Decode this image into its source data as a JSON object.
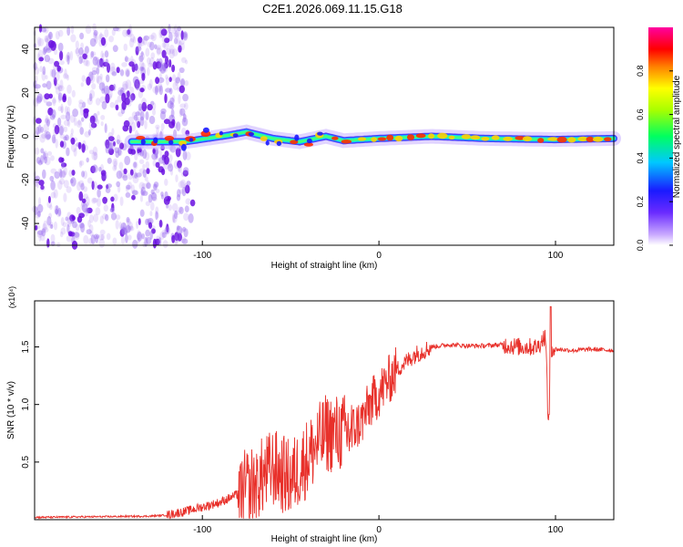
{
  "title": "C2E1.2026.069.11.15.G18",
  "colors": {
    "snr_line": "#e8302a",
    "spec_track_core": "#ff2a00",
    "spec_track_outer": "#2a2aff",
    "noise": "#8a3cff"
  },
  "chart_data": [
    {
      "type": "heatmap",
      "title": "",
      "xlabel": "Height of straight line (km)",
      "ylabel": "Frequency (Hz)",
      "xlim": [
        -195,
        133
      ],
      "ylim": [
        -50,
        50
      ],
      "xticks": [
        -100,
        0,
        100
      ],
      "yticks": [
        -40,
        -20,
        0,
        20,
        40
      ],
      "colorbar": {
        "label": "Normalized spectral amplitude",
        "range": [
          0,
          1
        ],
        "ticks": [
          "0.0",
          "0.2",
          "0.4",
          "0.6",
          "0.8"
        ],
        "tick_values": [
          0.0,
          0.2,
          0.4,
          0.6,
          0.8
        ]
      },
      "noise_region_x": [
        -195,
        -108
      ],
      "track": {
        "start_x": -140,
        "end_x": 133,
        "center_freq": [
          [
            -140,
            -2.5
          ],
          [
            -110,
            -2.5
          ],
          [
            -85,
            0.5
          ],
          [
            -75,
            2
          ],
          [
            -60,
            -1
          ],
          [
            -45,
            -2.5
          ],
          [
            -30,
            0
          ],
          [
            -20,
            -2
          ],
          [
            0,
            -1
          ],
          [
            30,
            0
          ],
          [
            60,
            -1
          ],
          [
            100,
            -1.5
          ],
          [
            133,
            -1
          ]
        ]
      }
    },
    {
      "type": "line",
      "title": "",
      "xlabel": "Height of straight line (km)",
      "ylabel": "SNR (10 * v/v)",
      "y_multiplier": "(x10⁴)",
      "xlim": [
        -195,
        133
      ],
      "ylim": [
        0,
        1.9
      ],
      "xticks": [
        -100,
        0,
        100
      ],
      "yticks": [
        0.5,
        1.0,
        1.5
      ],
      "ytick_labels": [
        "0.5",
        "1.0",
        "1.5"
      ],
      "series": [
        {
          "name": "SNR",
          "x": [
            -195,
            -160,
            -130,
            -120,
            -110,
            -100,
            -90,
            -80,
            -70,
            -60,
            -50,
            -40,
            -30,
            -20,
            -15,
            -10,
            -5,
            0,
            5,
            10,
            20,
            30,
            40,
            50,
            60,
            70,
            80,
            90,
            94,
            96,
            98,
            100,
            110,
            120,
            133
          ],
          "values": [
            0.02,
            0.025,
            0.03,
            0.04,
            0.07,
            0.11,
            0.15,
            0.22,
            0.32,
            0.45,
            0.35,
            0.55,
            0.75,
            0.75,
            0.78,
            0.85,
            1.0,
            1.1,
            1.2,
            1.3,
            1.43,
            1.5,
            1.52,
            1.51,
            1.51,
            1.52,
            1.5,
            1.5,
            1.6,
            1.1,
            1.5,
            1.48,
            1.47,
            1.48,
            1.47
          ]
        }
      ]
    }
  ]
}
